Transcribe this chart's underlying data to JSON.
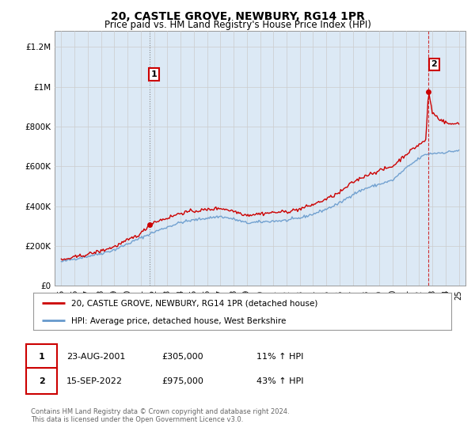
{
  "title": "20, CASTLE GROVE, NEWBURY, RG14 1PR",
  "subtitle": "Price paid vs. HM Land Registry's House Price Index (HPI)",
  "title_fontsize": 10,
  "subtitle_fontsize": 8.5,
  "ylabel_ticks": [
    "£0",
    "£200K",
    "£400K",
    "£600K",
    "£800K",
    "£1M",
    "£1.2M"
  ],
  "ytick_values": [
    0,
    200000,
    400000,
    600000,
    800000,
    1000000,
    1200000
  ],
  "ylim": [
    0,
    1280000
  ],
  "xlim_start": 1994.5,
  "xlim_end": 2025.5,
  "grid_color": "#cccccc",
  "hpi_color": "#6699cc",
  "price_color": "#cc0000",
  "sale1_x": 2001.646,
  "sale1_y": 305000,
  "sale2_x": 2022.708,
  "sale2_y": 975000,
  "legend_line1": "20, CASTLE GROVE, NEWBURY, RG14 1PR (detached house)",
  "legend_line2": "HPI: Average price, detached house, West Berkshire",
  "ann1_label": "1",
  "ann2_label": "2",
  "table_row1": [
    "1",
    "23-AUG-2001",
    "£305,000",
    "11% ↑ HPI"
  ],
  "table_row2": [
    "2",
    "15-SEP-2022",
    "£975,000",
    "43% ↑ HPI"
  ],
  "footnote1": "Contains HM Land Registry data © Crown copyright and database right 2024.",
  "footnote2": "This data is licensed under the Open Government Licence v3.0.",
  "bg_color": "#ffffff",
  "plot_bg_color": "#dce9f5"
}
